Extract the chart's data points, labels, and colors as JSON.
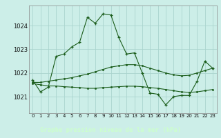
{
  "title": "Graphe pression niveau de la mer (hPa)",
  "bg_color": "#cceee8",
  "plot_bg": "#cceee8",
  "grid_color": "#aad4ce",
  "line_color": "#1a5c1a",
  "footer_bg": "#2d6b2d",
  "footer_text": "#ccffcc",
  "x_labels": [
    "0",
    "1",
    "2",
    "3",
    "4",
    "5",
    "6",
    "7",
    "8",
    "9",
    "10",
    "11",
    "12",
    "13",
    "14",
    "15",
    "16",
    "17",
    "18",
    "19",
    "20",
    "21",
    "22",
    "23"
  ],
  "y_ticks": [
    1021,
    1022,
    1023,
    1024
  ],
  "ylim": [
    1020.3,
    1024.85
  ],
  "series1_y": [
    1021.7,
    1021.2,
    1021.4,
    1022.7,
    1022.8,
    1023.1,
    1023.3,
    1024.35,
    1024.1,
    1024.5,
    1024.45,
    1023.5,
    1022.8,
    1022.85,
    1022.0,
    1021.15,
    1021.1,
    1020.65,
    1021.0,
    1021.05,
    1021.05,
    1021.65,
    1022.5,
    1022.2
  ],
  "series2_y": [
    1021.55,
    1021.5,
    1021.45,
    1021.45,
    1021.42,
    1021.4,
    1021.38,
    1021.35,
    1021.35,
    1021.38,
    1021.4,
    1021.42,
    1021.44,
    1021.44,
    1021.42,
    1021.38,
    1021.35,
    1021.3,
    1021.25,
    1021.2,
    1021.18,
    1021.2,
    1021.25,
    1021.3
  ],
  "series3_y": [
    1021.6,
    1021.6,
    1021.65,
    1021.7,
    1021.75,
    1021.8,
    1021.88,
    1021.95,
    1022.05,
    1022.15,
    1022.25,
    1022.3,
    1022.35,
    1022.35,
    1022.3,
    1022.2,
    1022.1,
    1022.0,
    1021.92,
    1021.88,
    1021.9,
    1022.0,
    1022.1,
    1022.2
  ]
}
